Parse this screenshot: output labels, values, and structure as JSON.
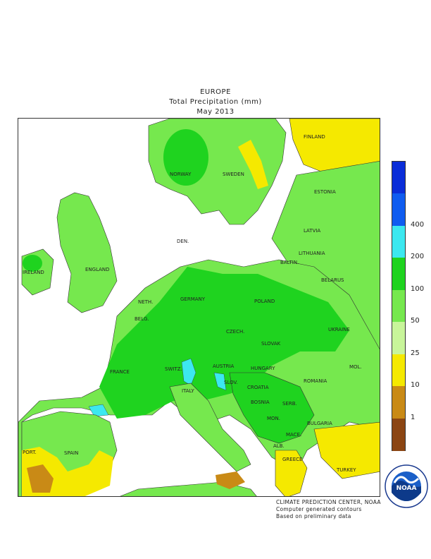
{
  "header": {
    "line1": "EUROPE",
    "line2": "Total Precipitation (mm)",
    "line3": "May 2013"
  },
  "map": {
    "colors": {
      "water": "#ffffff",
      "lt_green": "#c8f59a",
      "green": "#76e84e",
      "dk_green": "#1fd31f",
      "cyan": "#3ce8f0",
      "yellow": "#f5e900",
      "tan": "#c98a16",
      "brown": "#8b4513"
    },
    "labels": {
      "finland": "FINLAND",
      "norway": "NORWAY",
      "sweden": "SWEDEN",
      "estonia": "ESTONIA",
      "latvia": "LATVIA",
      "lithuania": "LITHUANIA",
      "baltic": "BALTIN.",
      "den": "DEN.",
      "ireland": "IRELAND",
      "england": "ENGLAND",
      "neth": "NETH.",
      "belg": "BELG.",
      "germany": "GERMANY",
      "poland": "POLAND",
      "belarus": "BELARUS",
      "ukraine": "UKRAINE",
      "czech": "CZECH.",
      "slovak": "SLOVAK",
      "france": "FRANCE",
      "switz": "SWITZ.",
      "austria": "AUSTRIA",
      "hungary": "HUNGARY",
      "romania": "ROMANIA",
      "mol": "MOL.",
      "italy": "ITALY",
      "slov": "SLOV.",
      "croatia": "CROATIA",
      "bosnia": "BOSNIA",
      "serb": "SERB.",
      "mon": "MON.",
      "bulgaria": "BULGARIA",
      "alb": "ALB.",
      "mace": "MACE.",
      "greece": "GREECE",
      "turkey": "TURKEY",
      "port": "PORT.",
      "spain": "SPAIN"
    }
  },
  "legend": {
    "bands": [
      {
        "color": "#0a2dd8",
        "label": ""
      },
      {
        "color": "#0f5cf0",
        "label": "400"
      },
      {
        "color": "#3ce8f0",
        "label": "200"
      },
      {
        "color": "#1fd31f",
        "label": "100"
      },
      {
        "color": "#76e84e",
        "label": "50"
      },
      {
        "color": "#c8f59a",
        "label": "25"
      },
      {
        "color": "#f5e900",
        "label": "10"
      },
      {
        "color": "#c98a16",
        "label": "1"
      },
      {
        "color": "#8b4513",
        "label": ""
      }
    ]
  },
  "footer": {
    "line1": "CLIMATE PREDICTION CENTER, NOAA",
    "line2": "Computer generated contours",
    "line3": "Based on preliminary data"
  },
  "logo": {
    "text": "NOAA",
    "ring_top": "NATIONAL OCEANIC AND ATMOSPHERIC ADMINISTRATION",
    "ring_bottom": "U.S. DEPARTMENT OF COMMERCE"
  }
}
